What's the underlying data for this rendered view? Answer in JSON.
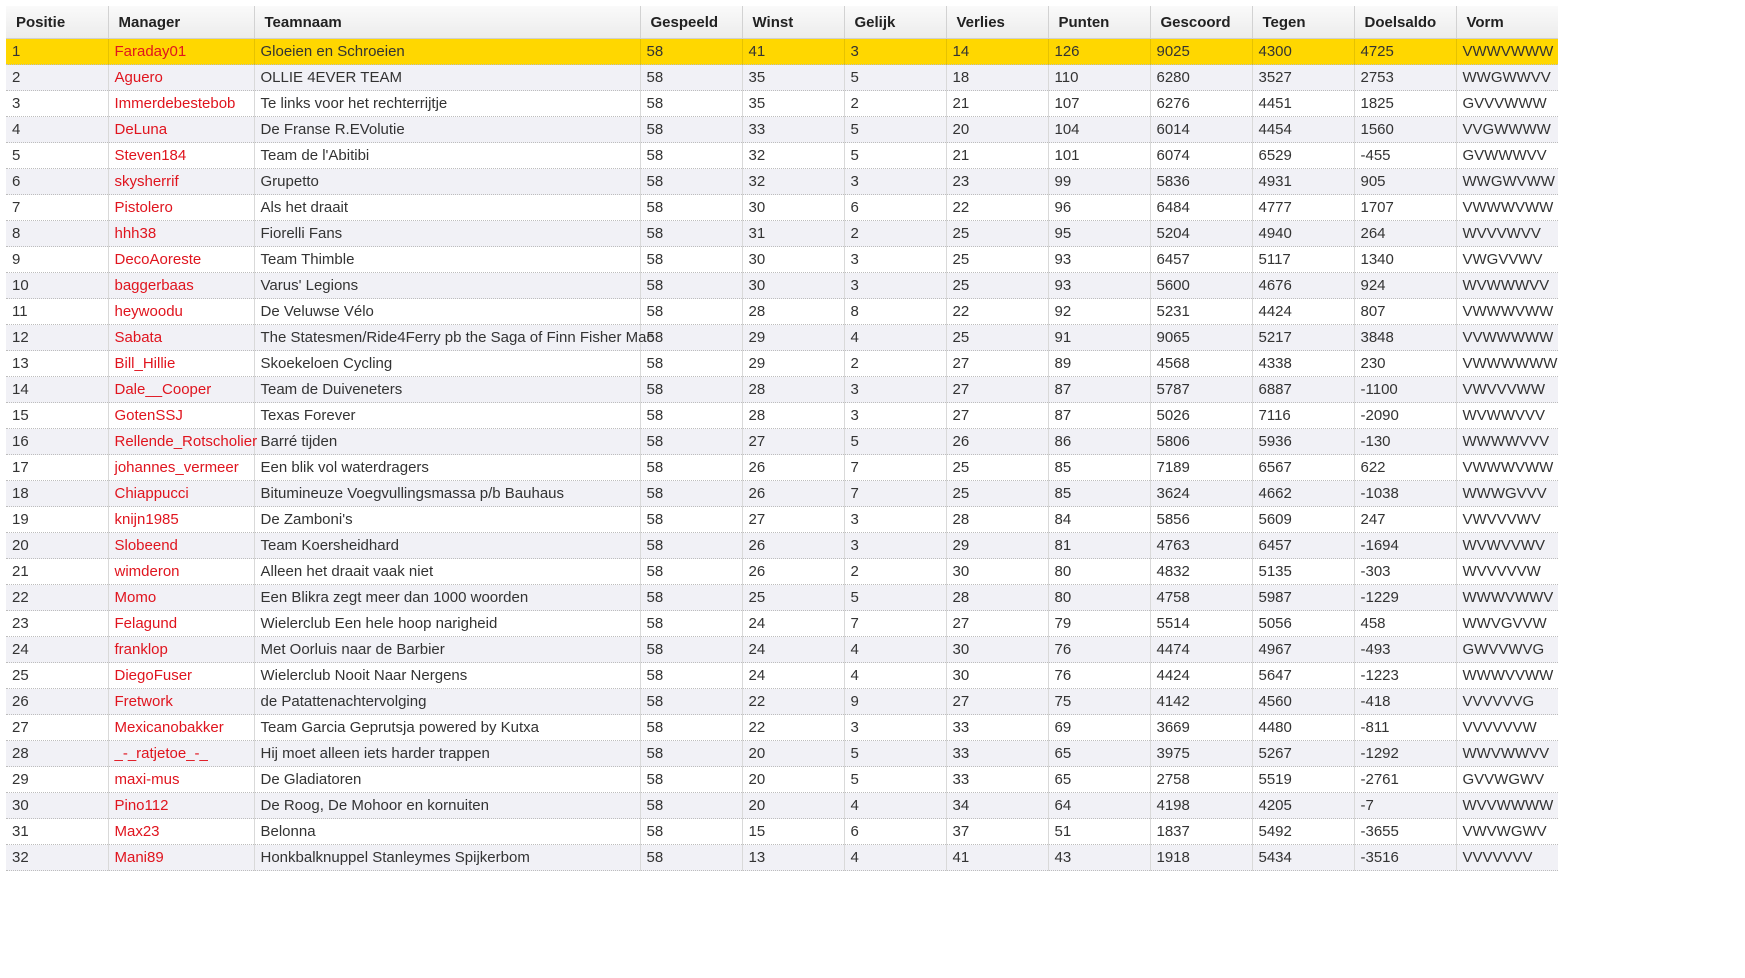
{
  "table": {
    "columns": [
      "Positie",
      "Manager",
      "Teamnaam",
      "Gespeeld",
      "Winst",
      "Gelijk",
      "Verlies",
      "Punten",
      "Gescoord",
      "Tegen",
      "Doelsaldo",
      "Vorm"
    ],
    "highlight_color": "#ffd700",
    "manager_link_color": "#e0141e",
    "highlighted_row": 0,
    "rows": [
      [
        "1",
        "Faraday01",
        "Gloeien en Schroeien",
        "58",
        "41",
        "3",
        "14",
        "126",
        "9025",
        "4300",
        "4725",
        "VWWVWWW"
      ],
      [
        "2",
        "Aguero",
        "OLLIE 4EVER TEAM",
        "58",
        "35",
        "5",
        "18",
        "110",
        "6280",
        "3527",
        "2753",
        "WWGWWVV"
      ],
      [
        "3",
        "Immerdebestebob",
        "Te links voor het rechterrijtje",
        "58",
        "35",
        "2",
        "21",
        "107",
        "6276",
        "4451",
        "1825",
        "GVVVWWW"
      ],
      [
        "4",
        "DeLuna",
        "De Franse R.EVolutie",
        "58",
        "33",
        "5",
        "20",
        "104",
        "6014",
        "4454",
        "1560",
        "VVGWWWW"
      ],
      [
        "5",
        "Steven184",
        "Team de l'Abitibi",
        "58",
        "32",
        "5",
        "21",
        "101",
        "6074",
        "6529",
        "-455",
        "GVWWWVV"
      ],
      [
        "6",
        "skysherrif",
        "Grupetto",
        "58",
        "32",
        "3",
        "23",
        "99",
        "5836",
        "4931",
        "905",
        "WWGWVWW"
      ],
      [
        "7",
        "Pistolero",
        "Als het draait",
        "58",
        "30",
        "6",
        "22",
        "96",
        "6484",
        "4777",
        "1707",
        "VWWWVWW"
      ],
      [
        "8",
        "hhh38",
        "Fiorelli Fans",
        "58",
        "31",
        "2",
        "25",
        "95",
        "5204",
        "4940",
        "264",
        "WVVVWVV"
      ],
      [
        "9",
        "DecoAoreste",
        "Team Thimble",
        "58",
        "30",
        "3",
        "25",
        "93",
        "6457",
        "5117",
        "1340",
        "VWGVVWV"
      ],
      [
        "10",
        "baggerbaas",
        "Varus' Legions",
        "58",
        "30",
        "3",
        "25",
        "93",
        "5600",
        "4676",
        "924",
        "WVWWWVV"
      ],
      [
        "11",
        "heywoodu",
        "De Veluwse Vélo",
        "58",
        "28",
        "8",
        "22",
        "92",
        "5231",
        "4424",
        "807",
        "VWWWVWW"
      ],
      [
        "12",
        "Sabata",
        "The Statesmen/Ride4Ferry pb the Saga of Finn Fisher Mac",
        "58",
        "29",
        "4",
        "25",
        "91",
        "9065",
        "5217",
        "3848",
        "VVWWWWW"
      ],
      [
        "13",
        "Bill_Hillie",
        "Skoekeloen Cycling",
        "58",
        "29",
        "2",
        "27",
        "89",
        "4568",
        "4338",
        "230",
        "VWWWWWW"
      ],
      [
        "14",
        "Dale__Cooper",
        "Team de Duiveneters",
        "58",
        "28",
        "3",
        "27",
        "87",
        "5787",
        "6887",
        "-1100",
        "VWVVVWW"
      ],
      [
        "15",
        "GotenSSJ",
        "Texas Forever",
        "58",
        "28",
        "3",
        "27",
        "87",
        "5026",
        "7116",
        "-2090",
        "WVWWVVV"
      ],
      [
        "16",
        "Rellende_Rotscholier",
        "Barré tijden",
        "58",
        "27",
        "5",
        "26",
        "86",
        "5806",
        "5936",
        "-130",
        "WWWWVVV"
      ],
      [
        "17",
        "johannes_vermeer",
        "Een blik vol waterdragers",
        "58",
        "26",
        "7",
        "25",
        "85",
        "7189",
        "6567",
        "622",
        "VWWWVWW"
      ],
      [
        "18",
        "Chiappucci",
        "Bitumineuze Voegvullingsmassa p/b Bauhaus",
        "58",
        "26",
        "7",
        "25",
        "85",
        "3624",
        "4662",
        "-1038",
        "WWWGVVV"
      ],
      [
        "19",
        "knijn1985",
        "De Zamboni's",
        "58",
        "27",
        "3",
        "28",
        "84",
        "5856",
        "5609",
        "247",
        "VWVVVWV"
      ],
      [
        "20",
        "Slobeend",
        "Team Koersheidhard",
        "58",
        "26",
        "3",
        "29",
        "81",
        "4763",
        "6457",
        "-1694",
        "WVWVVWV"
      ],
      [
        "21",
        "wimderon",
        "Alleen het draait vaak niet",
        "58",
        "26",
        "2",
        "30",
        "80",
        "4832",
        "5135",
        "-303",
        "WVVVVVW"
      ],
      [
        "22",
        "Momo",
        "Een Blikra zegt meer dan 1000 woorden",
        "58",
        "25",
        "5",
        "28",
        "80",
        "4758",
        "5987",
        "-1229",
        "WWWVWWV"
      ],
      [
        "23",
        "Felagund",
        "Wielerclub Een hele hoop narigheid",
        "58",
        "24",
        "7",
        "27",
        "79",
        "5514",
        "5056",
        "458",
        "WWVGVVW"
      ],
      [
        "24",
        "franklop",
        "Met Oorluis naar de Barbier",
        "58",
        "24",
        "4",
        "30",
        "76",
        "4474",
        "4967",
        "-493",
        "GWVVWVG"
      ],
      [
        "25",
        "DiegoFuser",
        "Wielerclub Nooit Naar Nergens",
        "58",
        "24",
        "4",
        "30",
        "76",
        "4424",
        "5647",
        "-1223",
        "WWWVVWW"
      ],
      [
        "26",
        "Fretwork",
        "de Patattenachtervolging",
        "58",
        "22",
        "9",
        "27",
        "75",
        "4142",
        "4560",
        "-418",
        "VVVVVVG"
      ],
      [
        "27",
        "Mexicanobakker",
        "Team Garcia Geprutsja powered by Kutxa",
        "58",
        "22",
        "3",
        "33",
        "69",
        "3669",
        "4480",
        "-811",
        "VVVVVVW"
      ],
      [
        "28",
        "_-_ratjetoe_-_",
        "Hij moet alleen iets harder trappen",
        "58",
        "20",
        "5",
        "33",
        "65",
        "3975",
        "5267",
        "-1292",
        "WWVWWVV"
      ],
      [
        "29",
        "maxi-mus",
        "De Gladiatoren",
        "58",
        "20",
        "5",
        "33",
        "65",
        "2758",
        "5519",
        "-2761",
        "GVVWGWV"
      ],
      [
        "30",
        "Pino112",
        "De Roog, De Mohoor en kornuiten",
        "58",
        "20",
        "4",
        "34",
        "64",
        "4198",
        "4205",
        "-7",
        "WVVWWWW"
      ],
      [
        "31",
        "Max23",
        "Belonna",
        "58",
        "15",
        "6",
        "37",
        "51",
        "1837",
        "5492",
        "-3655",
        "VWVWGWV"
      ],
      [
        "32",
        "Mani89",
        "Honkbalknuppel Stanleymes Spijkerbom",
        "58",
        "13",
        "4",
        "41",
        "43",
        "1918",
        "5434",
        "-3516",
        "VVVVVVV"
      ]
    ]
  }
}
